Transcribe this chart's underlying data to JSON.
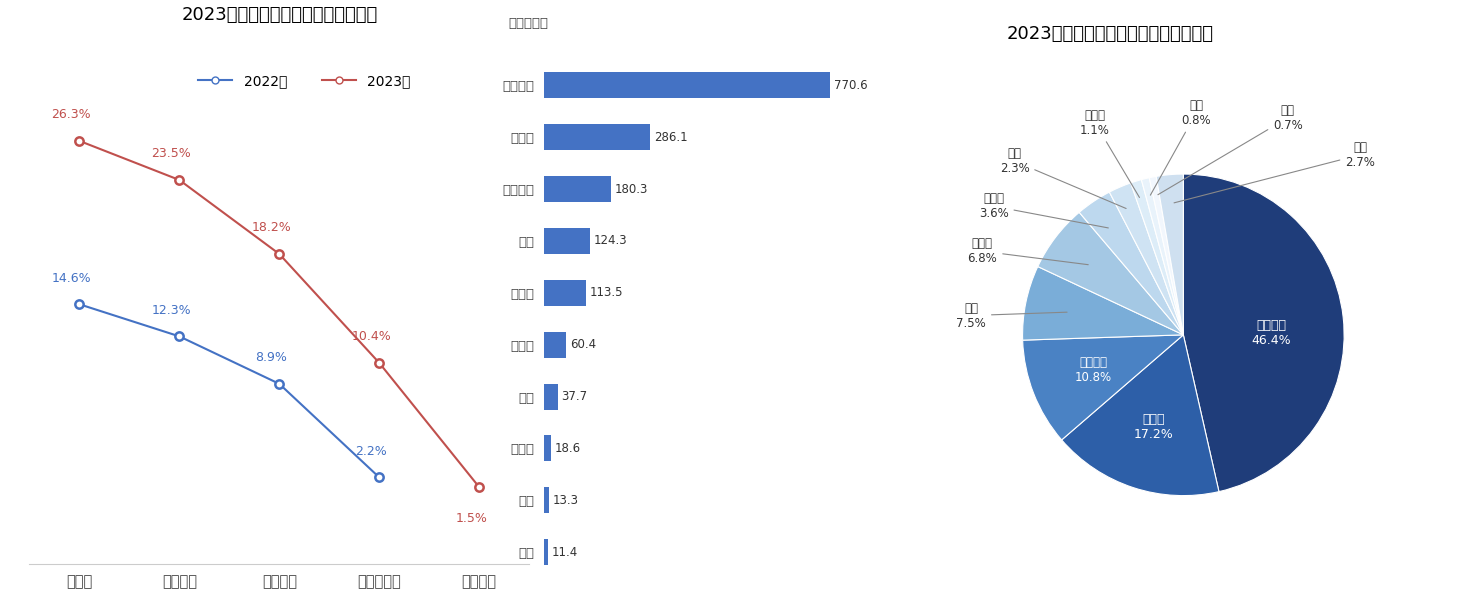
{
  "left_title": "2023年国内语音交互控制功能渗透率",
  "right_title": "2023年国内语音交互竞争格局（标配）",
  "line_categories": [
    "免唤醒",
    "连续识别",
    "分区唤醒",
    "可见即可说",
    "声纹识别"
  ],
  "line_2022": [
    14.6,
    12.3,
    8.9,
    2.2,
    null
  ],
  "line_2023": [
    26.3,
    23.5,
    18.2,
    10.4,
    1.5
  ],
  "line_2022_label": "2022年",
  "line_2023_label": "2023年",
  "line_2022_color": "#4472C4",
  "line_2023_color": "#C0504D",
  "bar_categories": [
    "科大讯飞",
    "赛轮思",
    "大众问问",
    "百度",
    "思必驰",
    "特斯拉",
    "理想",
    "亿咖通",
    "小鹏",
    "阿里"
  ],
  "bar_values": [
    770.6,
    286.1,
    180.3,
    124.3,
    113.5,
    60.4,
    37.7,
    18.6,
    13.3,
    11.4
  ],
  "bar_color": "#4472C4",
  "unit_label": "单位：万套",
  "pie_labels": [
    "科大讯飞",
    "赛轮思",
    "大众问问",
    "百度",
    "思必驰",
    "特斯拉",
    "理想",
    "亿咖通",
    "小鹏",
    "阿里",
    "其他"
  ],
  "pie_values": [
    46.4,
    17.2,
    10.8,
    7.5,
    6.8,
    3.6,
    2.3,
    1.1,
    0.8,
    0.7,
    2.7
  ],
  "pie_colors": [
    "#1f3d7a",
    "#2d5fa8",
    "#4a82c4",
    "#7aadd8",
    "#a4c8e4",
    "#bdd8ee",
    "#cfe3f3",
    "#ddedf8",
    "#e9f3fb",
    "#f2f7fd",
    "#cfe0f0"
  ],
  "background_color": "#ffffff",
  "bar_value_color_special": [
    "#C0504D",
    "#C0504D",
    "#C0504D",
    "#C0504D",
    "#C0504D",
    "#333333",
    "#333333",
    "#C0504D",
    "#333333",
    "#333333"
  ],
  "bar_value_colors": [
    "#C0504D",
    "#C0504D",
    "#C0504D",
    "#C0504D",
    "#C0504D",
    "#333333",
    "#333333",
    "#C0504D",
    "#333333",
    "#333333"
  ]
}
